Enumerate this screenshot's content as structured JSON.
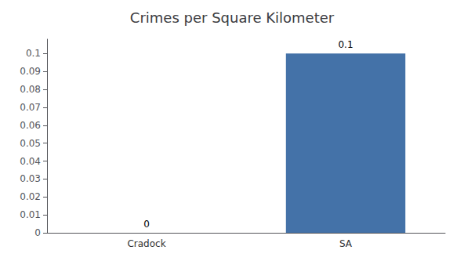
{
  "chart_data": {
    "type": "bar",
    "title": "Crimes per Square Kilometer",
    "categories": [
      "Cradock",
      "SA"
    ],
    "values": [
      0,
      0.1
    ],
    "color": "#4472a8",
    "ylim": [
      0,
      0.108
    ],
    "yticks": [
      0,
      0.01,
      0.02,
      0.03,
      0.04,
      0.05,
      0.06,
      0.07,
      0.08,
      0.09,
      0.1
    ],
    "grid": false,
    "data_labels": true
  }
}
